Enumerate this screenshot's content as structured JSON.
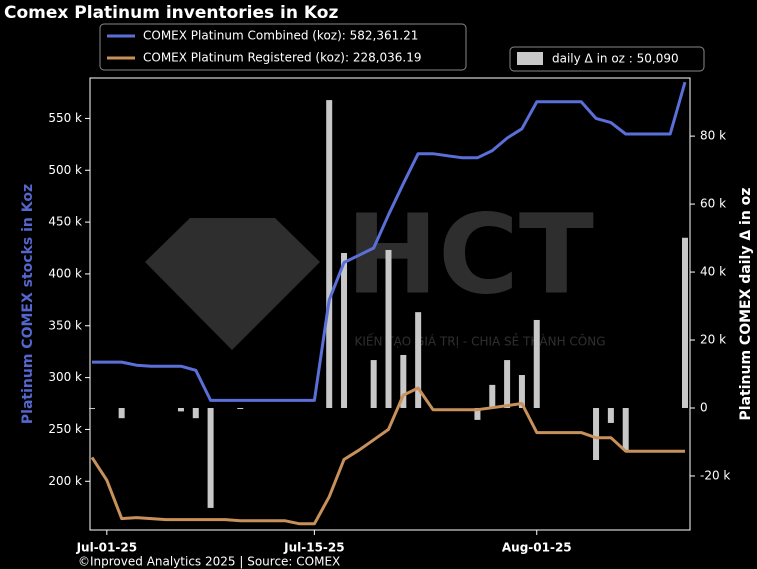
{
  "chart_data": {
    "type": "line",
    "title": "Comex Platinum inventories in Koz",
    "y_label": "Platinum COMEX stocks in Koz",
    "y2_label": "Platinum COMEX daily Δ in oz",
    "source": "©Inproved Analytics 2025 | Source: COMEX",
    "watermark": {
      "logo": "HCT",
      "slogan": "KIẾN TẠO GIÁ TRỊ - CHIA SẺ THÀNH CÔNG"
    },
    "categories": [
      null,
      "Jul-01-25",
      null,
      null,
      null,
      null,
      null,
      null,
      null,
      null,
      null,
      null,
      null,
      null,
      null,
      "Jul-15-25",
      null,
      null,
      null,
      null,
      null,
      null,
      null,
      null,
      null,
      null,
      null,
      null,
      null,
      null,
      "Aug-01-25",
      null,
      null,
      null,
      null,
      null,
      null,
      null,
      null,
      null,
      null
    ],
    "series": [
      {
        "name": "COMEX Platinum Combined (koz): 582,361.21",
        "type": "line",
        "axis": "y",
        "color": "#5b6fd8",
        "values": [
          315000,
          315000,
          315000,
          312000,
          311000,
          311000,
          311000,
          307000,
          278000,
          278000,
          278000,
          278000,
          278000,
          278000,
          278000,
          278000,
          375000,
          411000,
          418000,
          425000,
          457000,
          487000,
          516000,
          516000,
          514000,
          512000,
          512000,
          519000,
          531000,
          540000,
          566000,
          566000,
          566000,
          566000,
          550000,
          546000,
          535000,
          535000,
          535000,
          535000,
          585000
        ]
      },
      {
        "name": "COMEX Platinum Registered (koz): 228,036.19",
        "type": "line",
        "axis": "y",
        "color": "#c8915b",
        "values": [
          223000,
          201000,
          164000,
          165000,
          164000,
          163000,
          163000,
          163000,
          163000,
          163000,
          162000,
          162000,
          162000,
          162000,
          159000,
          159000,
          185000,
          221000,
          230000,
          240000,
          250000,
          283000,
          290000,
          269000,
          269000,
          269000,
          269000,
          271000,
          273000,
          275000,
          247000,
          247000,
          247000,
          247000,
          242000,
          242000,
          229000,
          229000,
          229000,
          229000,
          229000
        ]
      },
      {
        "name": "daily Δ in oz : 50,090",
        "type": "bar",
        "axis": "y2",
        "color": "#c8c8c8",
        "values": [
          -300,
          null,
          -3000,
          null,
          null,
          null,
          -1000,
          -3000,
          -29400,
          null,
          -300,
          null,
          null,
          null,
          null,
          null,
          90600,
          45600,
          null,
          14100,
          46500,
          15600,
          28200,
          null,
          null,
          null,
          -3500,
          6800,
          14100,
          9700,
          25900,
          null,
          null,
          null,
          -15300,
          -4400,
          -12400,
          null,
          null,
          null,
          50090
        ]
      }
    ],
    "ylim": [
      153000,
      589000
    ],
    "yticks": [
      {
        "value": 200000,
        "label": "200 k"
      },
      {
        "value": 250000,
        "label": "250 k"
      },
      {
        "value": 300000,
        "label": "300 k"
      },
      {
        "value": 350000,
        "label": "350 k"
      },
      {
        "value": 400000,
        "label": "400 k"
      },
      {
        "value": 450000,
        "label": "450 k"
      },
      {
        "value": 500000,
        "label": "500 k"
      },
      {
        "value": 550000,
        "label": "550 k"
      }
    ],
    "y2lim": [
      -35900,
      97100
    ],
    "y2ticks": [
      {
        "value": -20000,
        "label": "-20 k"
      },
      0,
      {
        "value": 20000,
        "label": "20 k"
      },
      {
        "value": 40000,
        "label": "40 k"
      },
      {
        "value": 60000,
        "label": "60 k"
      },
      {
        "value": 80000,
        "label": "80 k"
      }
    ],
    "grid": false
  }
}
